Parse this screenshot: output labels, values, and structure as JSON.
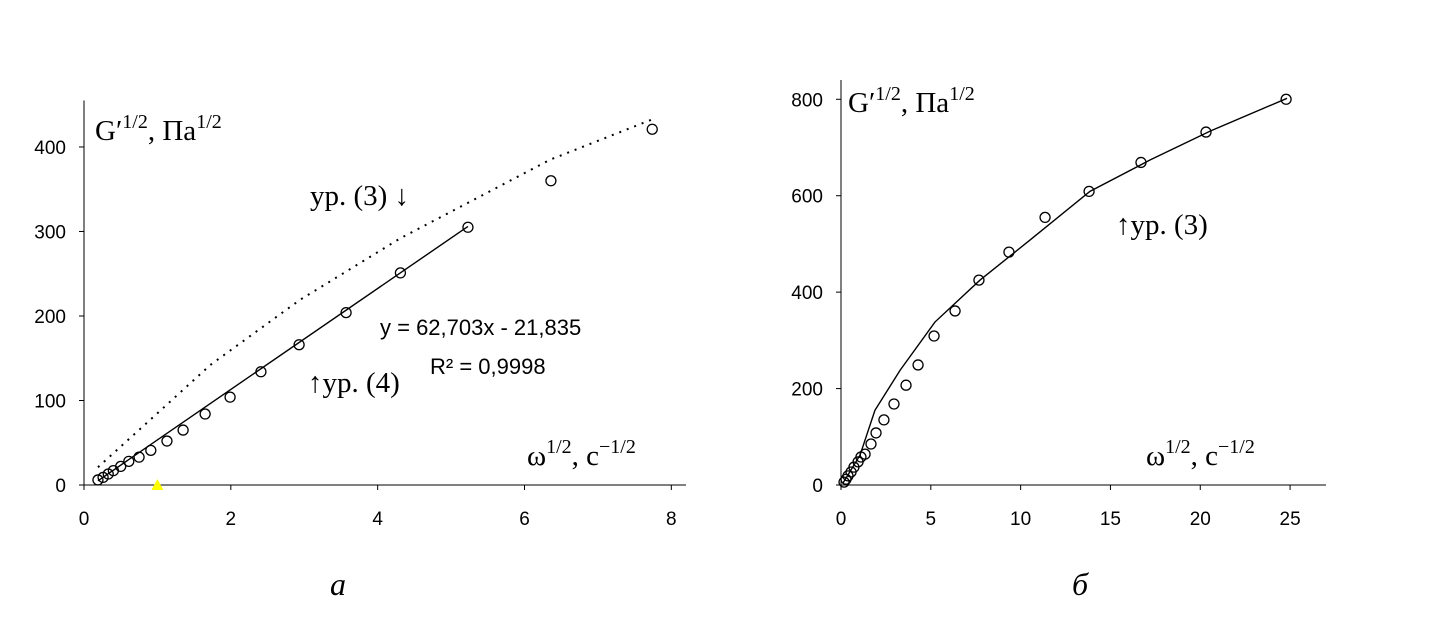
{
  "chart_data": [
    {
      "type": "scatter",
      "caption": "а",
      "ylabel": [
        "G′",
        "1/2",
        ", Па",
        "1/2"
      ],
      "xlabel": [
        "ω",
        "1/2",
        ", с",
        "−1/2"
      ],
      "xlim": [
        0,
        8.2
      ],
      "ylim": [
        0,
        455
      ],
      "xticks": [
        0,
        2,
        4,
        6,
        8
      ],
      "yticks": [
        0,
        100,
        200,
        300,
        400
      ],
      "annotations": [
        "ур. (3) ↓",
        "↑ур. (4)",
        "y = 62,703x - 21,835",
        "R² = 0,9998"
      ],
      "series": [
        {
          "style": "markers",
          "color": "#000000",
          "x": [
            0.19,
            0.26,
            0.33,
            0.4,
            0.5,
            0.61,
            0.75,
            0.91,
            1.13,
            1.35,
            1.65,
            1.99,
            2.41,
            2.93,
            3.57,
            4.31,
            5.23,
            6.36,
            7.74
          ],
          "values": [
            6,
            9,
            13,
            17,
            22,
            28,
            33,
            41,
            52,
            65,
            84,
            104,
            134,
            166,
            204,
            251,
            305,
            360,
            421
          ]
        },
        {
          "style": "solid",
          "color": "#000000",
          "x": [
            0.19,
            5.23
          ],
          "values": [
            5,
            306
          ]
        },
        {
          "style": "dotted",
          "color": "#000000",
          "x": [
            0.19,
            0.9,
            1.72,
            2.94,
            4.31,
            6.35,
            7.78
          ],
          "values": [
            21,
            77,
            142,
            219,
            292,
            385,
            434
          ]
        },
        {
          "style": "triangle",
          "color": "#ffff00",
          "x": [
            1.0
          ],
          "values": [
            0
          ]
        }
      ]
    },
    {
      "type": "scatter",
      "caption": "б",
      "ylabel": [
        "G′",
        "1/2",
        ", Па",
        "1/2"
      ],
      "xlabel": [
        "ω",
        "1/2",
        ", с",
        "−1/2"
      ],
      "xlim": [
        0,
        27
      ],
      "ylim": [
        0,
        840
      ],
      "xticks": [
        0,
        5,
        10,
        15,
        20,
        25
      ],
      "yticks": [
        0,
        200,
        400,
        600,
        800
      ],
      "annotations": [
        "↑ур. (3)"
      ],
      "series": [
        {
          "style": "markers",
          "color": "#000000",
          "x": [
            0.17,
            0.28,
            0.39,
            0.56,
            0.72,
            0.95,
            1.11,
            1.34,
            1.67,
            1.95,
            2.39,
            2.95,
            3.62,
            4.29,
            5.18,
            6.35,
            7.68,
            9.35,
            11.36,
            13.81,
            16.7,
            20.32,
            24.78
          ],
          "values": [
            6,
            12,
            19,
            27,
            37,
            48,
            58,
            64,
            85,
            108,
            135,
            168,
            207,
            249,
            309,
            361,
            425,
            483,
            555,
            609,
            669,
            732,
            800
          ]
        },
        {
          "style": "solid",
          "color": "#000000",
          "x": [
            0.11,
            1.06,
            1.89,
            3.29,
            5.23,
            7.74,
            10.52,
            13.86,
            17.2,
            20.55,
            24.83
          ],
          "values": [
            4,
            62,
            155,
            238,
            338,
            425,
            508,
            609,
            674,
            734,
            802
          ]
        }
      ]
    }
  ]
}
